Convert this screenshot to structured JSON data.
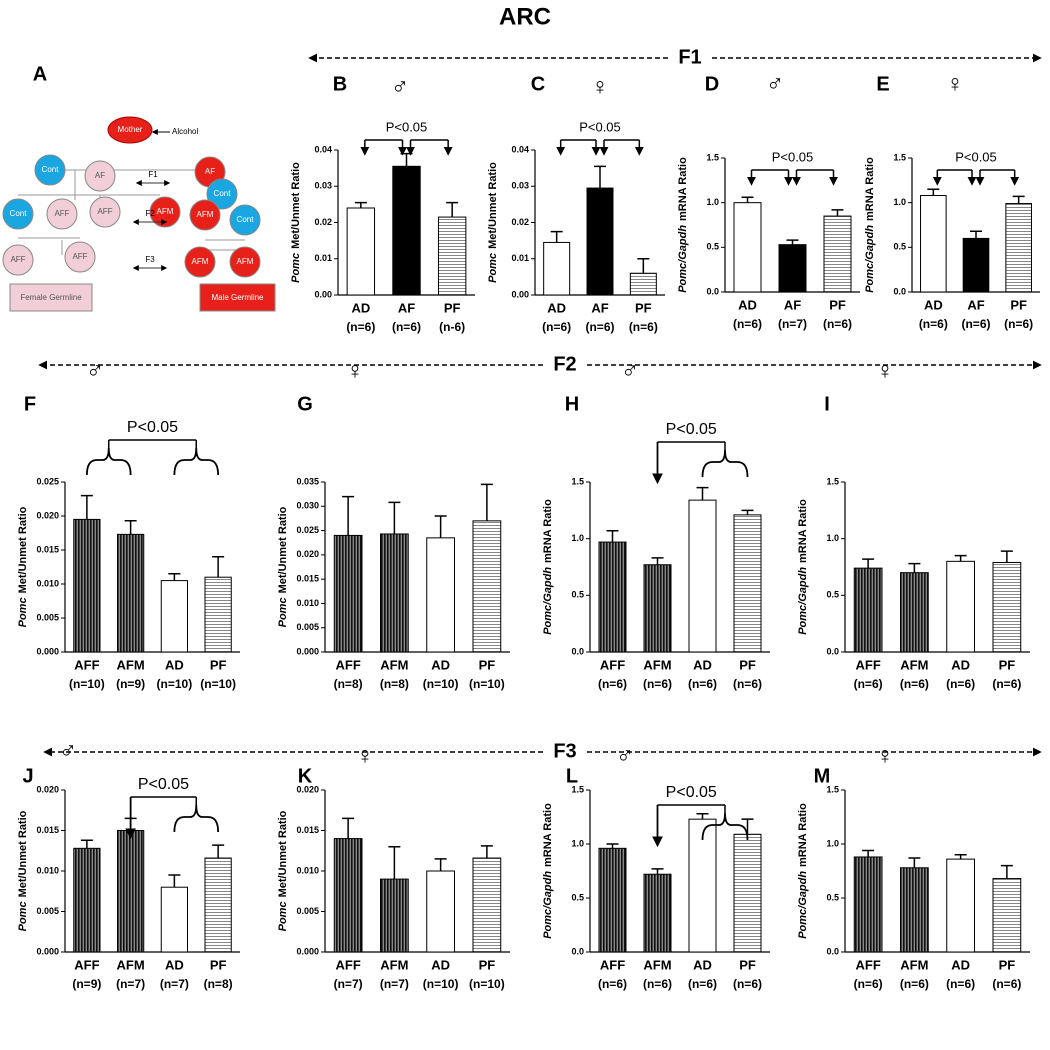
{
  "title": "ARC",
  "generations": [
    "F1",
    "F2",
    "F3"
  ],
  "diagram": {
    "label": "A",
    "nodes": [
      "Mother",
      "Cont",
      "AF",
      "AF",
      "Cont",
      "Cont",
      "AFF",
      "AFF",
      "AFM",
      "AFM",
      "Cont",
      "AFF",
      "AFF",
      "AFM",
      "AFM"
    ],
    "mother_note": "Alcohol",
    "steps": [
      "F1",
      "F2",
      "F3"
    ],
    "boxes": [
      "Female Germline",
      "Male Germline"
    ]
  },
  "chart_data": [
    {
      "type": "bar",
      "panel": "B",
      "sex": "♂",
      "y_label_italic": "Pomc",
      "y_label": "Met/Unmet Ratio",
      "categories": [
        "AD",
        "AF",
        "PF"
      ],
      "n_labels": [
        "(n=6)",
        "(n=6)",
        "(n-6)"
      ],
      "values": [
        0.024,
        0.0355,
        0.0215
      ],
      "errors": [
        0.0015,
        0.0035,
        0.004
      ],
      "fills": [
        "open",
        "solid",
        "hstripe"
      ],
      "ylim": [
        0,
        0.04
      ],
      "yticks": [
        {
          "value": 0,
          "label": "0.00"
        },
        0.01,
        0.02,
        0.03,
        0.04
      ],
      "annotation": "P<0.05"
    },
    {
      "type": "bar",
      "panel": "C",
      "sex": "♀",
      "y_label_italic": "Pomc",
      "y_label": "Met/Unmet Ratio",
      "categories": [
        "AD",
        "AF",
        "PF"
      ],
      "n_labels": [
        "(n=6)",
        "(n=6)",
        "(n=6)"
      ],
      "values": [
        0.0145,
        0.0295,
        0.006
      ],
      "errors": [
        0.003,
        0.006,
        0.004
      ],
      "fills": [
        "open",
        "solid",
        "hstripe"
      ],
      "ylim": [
        0,
        0.04
      ],
      "yticks": [
        {
          "value": 0,
          "label": "0.00"
        },
        0.01,
        0.02,
        0.03,
        0.04
      ],
      "annotation": "P<0.05"
    },
    {
      "type": "bar",
      "panel": "D",
      "sex": "♂",
      "y_label_italic": "Pomc/Gapdh",
      "y_label": "mRNA Ratio",
      "categories": [
        "AD",
        "AF",
        "PF"
      ],
      "n_labels": [
        "(n=6)",
        "(n=7)",
        "(n=6)"
      ],
      "values": [
        1.0,
        0.53,
        0.85
      ],
      "errors": [
        0.06,
        0.05,
        0.07
      ],
      "fills": [
        "open",
        "solid",
        "hstripe"
      ],
      "ylim": [
        0,
        1.5
      ],
      "yticks": [
        {
          "value": 0,
          "label": "0.0"
        },
        0.5,
        {
          "value": 1,
          "label": "1.0"
        },
        1.5
      ],
      "annotation": "P<0.05"
    },
    {
      "type": "bar",
      "panel": "E",
      "sex": "♀",
      "y_label_italic": "Pomc/Gapdh",
      "y_label": "mRNA Ratio",
      "categories": [
        "AD",
        "AF",
        "PF"
      ],
      "n_labels": [
        "(n=6)",
        "(n=6)",
        "(n=6)"
      ],
      "values": [
        1.08,
        0.6,
        0.99
      ],
      "errors": [
        0.07,
        0.08,
        0.08
      ],
      "fills": [
        "open",
        "solid",
        "hstripe"
      ],
      "ylim": [
        0,
        1.5
      ],
      "yticks": [
        {
          "value": 0,
          "label": "0.0"
        },
        0.5,
        {
          "value": 1,
          "label": "1.0"
        },
        1.5
      ],
      "annotation": "P<0.05"
    },
    {
      "type": "bar",
      "panel": "F",
      "sex": "♂",
      "y_label_italic": "Pomc",
      "y_label": "Met/Unmet Ratio",
      "categories": [
        "AFF",
        "AFM",
        "AD",
        "PF"
      ],
      "n_labels": [
        "(n=10)",
        "(n=9)",
        "(n=10)",
        "(n=10)"
      ],
      "values": [
        0.0195,
        0.0173,
        0.0105,
        0.011
      ],
      "errors": [
        0.0035,
        0.002,
        0.001,
        0.003
      ],
      "fills": [
        "vstripe",
        "vstripe",
        "open",
        "hstripe"
      ],
      "ylim": [
        0,
        0.025
      ],
      "yticks": [
        {
          "value": 0,
          "label": "0.000"
        },
        0.005,
        {
          "value": 0.01,
          "label": "0.010"
        },
        0.015,
        {
          "value": 0.02,
          "label": "0.020"
        },
        0.025
      ],
      "annotation": "P<0.05"
    },
    {
      "type": "bar",
      "panel": "G",
      "sex": "♀",
      "y_label_italic": "Pomc",
      "y_label": "Met/Unmet Ratio",
      "categories": [
        "AFF",
        "AFM",
        "AD",
        "PF"
      ],
      "n_labels": [
        "(n=8)",
        "(n=8)",
        "(n=10)",
        "(n=10)"
      ],
      "values": [
        0.024,
        0.0243,
        0.0235,
        0.027
      ],
      "errors": [
        0.008,
        0.0065,
        0.0045,
        0.0075
      ],
      "fills": [
        "vstripe",
        "vstripe",
        "open",
        "hstripe"
      ],
      "ylim": [
        0,
        0.035
      ],
      "yticks": [
        {
          "value": 0,
          "label": "0.000"
        },
        0.005,
        {
          "value": 0.01,
          "label": "0.010"
        },
        0.015,
        {
          "value": 0.02,
          "label": "0.020"
        },
        0.025,
        {
          "value": 0.03,
          "label": "0.030"
        },
        0.035
      ]
    },
    {
      "type": "bar",
      "panel": "H",
      "sex": "♂",
      "y_label_italic": "Pomc/Gapdh",
      "y_label": "mRNA Ratio",
      "categories": [
        "AFF",
        "AFM",
        "AD",
        "PF"
      ],
      "n_labels": [
        "(n=6)",
        "(n=6)",
        "(n=6)",
        "(n=6)"
      ],
      "values": [
        0.97,
        0.77,
        1.34,
        1.21
      ],
      "errors": [
        0.1,
        0.06,
        0.11,
        0.04
      ],
      "fills": [
        "vstripe",
        "vstripe",
        "open",
        "hstripe"
      ],
      "ylim": [
        0,
        1.5
      ],
      "yticks": [
        {
          "value": 0,
          "label": "0.0"
        },
        0.5,
        {
          "value": 1,
          "label": "1.0"
        },
        1.5
      ],
      "annotation": "P<0.05"
    },
    {
      "type": "bar",
      "panel": "I",
      "sex": "♀",
      "y_label_italic": "Pomc/Gapdh",
      "y_label": "mRNA Ratio",
      "categories": [
        "AFF",
        "AFM",
        "AD",
        "PF"
      ],
      "n_labels": [
        "(n=6)",
        "(n=6)",
        "(n=6)",
        "(n=6)"
      ],
      "values": [
        0.74,
        0.7,
        0.8,
        0.79
      ],
      "errors": [
        0.08,
        0.08,
        0.05,
        0.1
      ],
      "fills": [
        "vstripe",
        "vstripe",
        "open",
        "hstripe"
      ],
      "ylim": [
        0,
        1.5
      ],
      "yticks": [
        {
          "value": 0,
          "label": "0.0"
        },
        0.5,
        {
          "value": 1,
          "label": "1.0"
        },
        1.5
      ]
    },
    {
      "type": "bar",
      "panel": "J",
      "sex": "♂",
      "y_label_italic": "Pomc",
      "y_label": "Met/Unmet Ratio",
      "categories": [
        "AFF",
        "AFM",
        "AD",
        "PF"
      ],
      "n_labels": [
        "(n=9)",
        "(n=7)",
        "(n=7)",
        "(n=8)"
      ],
      "values": [
        0.0128,
        0.015,
        0.008,
        0.0116
      ],
      "errors": [
        0.001,
        0.0015,
        0.0015,
        0.0016
      ],
      "fills": [
        "vstripe",
        "vstripe",
        "open",
        "hstripe"
      ],
      "ylim": [
        0,
        0.02
      ],
      "yticks": [
        {
          "value": 0,
          "label": "0.000"
        },
        0.005,
        {
          "value": 0.01,
          "label": "0.010"
        },
        0.015,
        {
          "value": 0.02,
          "label": "0.020"
        }
      ],
      "annotation": "P<0.05"
    },
    {
      "type": "bar",
      "panel": "K",
      "sex": "♀",
      "y_label_italic": "Pomc",
      "y_label": "Met/Unmet Ratio",
      "categories": [
        "AFF",
        "AFM",
        "AD",
        "PF"
      ],
      "n_labels": [
        "(n=7)",
        "(n=7)",
        "(n=10)",
        "(n=10)"
      ],
      "values": [
        0.014,
        0.009,
        0.01,
        0.0116
      ],
      "errors": [
        0.0025,
        0.004,
        0.0015,
        0.0015
      ],
      "fills": [
        "vstripe",
        "vstripe",
        "open",
        "hstripe"
      ],
      "ylim": [
        0,
        0.02
      ],
      "yticks": [
        {
          "value": 0,
          "label": "0.000"
        },
        0.005,
        {
          "value": 0.01,
          "label": "0.010"
        },
        0.015,
        {
          "value": 0.02,
          "label": "0.020"
        }
      ]
    },
    {
      "type": "bar",
      "panel": "L",
      "sex": "♂",
      "y_label_italic": "Pomc/Gapdh",
      "y_label": "mRNA Ratio",
      "categories": [
        "AFF",
        "AFM",
        "AD",
        "PF"
      ],
      "n_labels": [
        "(n=6)",
        "(n=6)",
        "(n=6)",
        "(n=6)"
      ],
      "values": [
        0.96,
        0.72,
        1.23,
        1.09
      ],
      "errors": [
        0.04,
        0.05,
        0.05,
        0.14
      ],
      "fills": [
        "vstripe",
        "vstripe",
        "open",
        "hstripe"
      ],
      "ylim": [
        0,
        1.5
      ],
      "yticks": [
        {
          "value": 0,
          "label": "0.0"
        },
        0.5,
        {
          "value": 1,
          "label": "1.0"
        },
        1.5
      ],
      "annotation": "P<0.05"
    },
    {
      "type": "bar",
      "panel": "M",
      "sex": "♀",
      "y_label_italic": "Pomc/Gapdh",
      "y_label": "mRNA Ratio",
      "categories": [
        "AFF",
        "AFM",
        "AD",
        "PF"
      ],
      "n_labels": [
        "(n=6)",
        "(n=6)",
        "(n=6)",
        "(n=6)"
      ],
      "values": [
        0.88,
        0.78,
        0.86,
        0.68
      ],
      "errors": [
        0.06,
        0.09,
        0.04,
        0.12
      ],
      "fills": [
        "vstripe",
        "vstripe",
        "open",
        "hstripe"
      ],
      "ylim": [
        0,
        1.5
      ],
      "yticks": [
        {
          "value": 0,
          "label": "0.0"
        },
        0.5,
        {
          "value": 1,
          "label": "1.0"
        },
        1.5
      ]
    }
  ]
}
